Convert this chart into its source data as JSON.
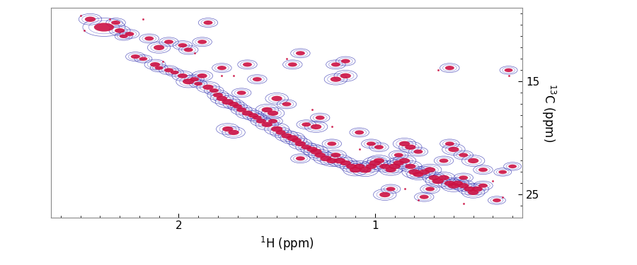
{
  "xlabel": "$^{1}$H (ppm)",
  "ylabel": "$^{13}$C (ppm)",
  "xlim": [
    2.65,
    0.25
  ],
  "ylim": [
    27.0,
    8.5
  ],
  "xticks": [
    2.0,
    1.0
  ],
  "yticks": [
    15,
    25
  ],
  "bg_color": "#ffffff",
  "peaks": [
    [
      2.38,
      10.2,
      0.12,
      0.9,
      1.5
    ],
    [
      2.3,
      10.5,
      0.06,
      0.5,
      0.8
    ],
    [
      2.28,
      11.0,
      0.05,
      0.4,
      0.7
    ],
    [
      2.22,
      12.8,
      0.055,
      0.45,
      0.7
    ],
    [
      2.18,
      13.0,
      0.05,
      0.4,
      0.6
    ],
    [
      2.12,
      13.5,
      0.06,
      0.5,
      0.8
    ],
    [
      2.1,
      13.8,
      0.05,
      0.4,
      0.6
    ],
    [
      2.05,
      14.0,
      0.055,
      0.45,
      0.7
    ],
    [
      2.02,
      14.2,
      0.05,
      0.4,
      0.6
    ],
    [
      1.98,
      14.5,
      0.06,
      0.5,
      0.8
    ],
    [
      1.95,
      15.0,
      0.07,
      0.6,
      0.9
    ],
    [
      1.92,
      14.8,
      0.055,
      0.45,
      0.7
    ],
    [
      1.9,
      15.2,
      0.05,
      0.4,
      0.6
    ],
    [
      1.88,
      14.5,
      0.06,
      0.5,
      0.8
    ],
    [
      1.85,
      15.5,
      0.065,
      0.55,
      0.85
    ],
    [
      1.82,
      15.8,
      0.055,
      0.45,
      0.7
    ],
    [
      1.8,
      16.2,
      0.06,
      0.5,
      0.8
    ],
    [
      1.78,
      16.5,
      0.065,
      0.55,
      0.85
    ],
    [
      1.75,
      16.8,
      0.07,
      0.6,
      0.9
    ],
    [
      1.72,
      17.0,
      0.06,
      0.5,
      0.8
    ],
    [
      1.7,
      17.2,
      0.055,
      0.45,
      0.7
    ],
    [
      1.68,
      17.5,
      0.06,
      0.5,
      0.8
    ],
    [
      1.65,
      17.8,
      0.065,
      0.55,
      0.85
    ],
    [
      1.62,
      18.0,
      0.06,
      0.5,
      0.8
    ],
    [
      1.6,
      18.2,
      0.055,
      0.45,
      0.7
    ],
    [
      1.58,
      18.5,
      0.06,
      0.5,
      0.8
    ],
    [
      1.55,
      18.8,
      0.065,
      0.55,
      0.85
    ],
    [
      1.52,
      18.5,
      0.055,
      0.45,
      0.7
    ],
    [
      1.5,
      19.2,
      0.07,
      0.6,
      0.9
    ],
    [
      1.48,
      19.5,
      0.06,
      0.5,
      0.8
    ],
    [
      1.45,
      19.8,
      0.065,
      0.55,
      0.85
    ],
    [
      1.42,
      20.0,
      0.07,
      0.6,
      0.9
    ],
    [
      1.4,
      20.2,
      0.06,
      0.5,
      0.8
    ],
    [
      1.38,
      20.5,
      0.065,
      0.55,
      0.85
    ],
    [
      1.35,
      20.8,
      0.06,
      0.5,
      0.8
    ],
    [
      1.32,
      21.0,
      0.065,
      0.55,
      0.85
    ],
    [
      1.3,
      21.2,
      0.07,
      0.6,
      0.9
    ],
    [
      1.28,
      21.5,
      0.065,
      0.55,
      0.85
    ],
    [
      1.25,
      21.8,
      0.07,
      0.6,
      0.9
    ],
    [
      1.22,
      22.0,
      0.065,
      0.55,
      0.85
    ],
    [
      1.2,
      21.5,
      0.06,
      0.5,
      0.8
    ],
    [
      1.18,
      22.0,
      0.07,
      0.6,
      0.9
    ],
    [
      1.15,
      22.2,
      0.065,
      0.55,
      0.85
    ],
    [
      1.12,
      22.5,
      0.065,
      0.55,
      0.85
    ],
    [
      1.1,
      22.8,
      0.07,
      0.6,
      0.9
    ],
    [
      1.08,
      22.5,
      0.065,
      0.55,
      0.85
    ],
    [
      1.05,
      22.8,
      0.075,
      0.65,
      0.95
    ],
    [
      1.02,
      22.5,
      0.065,
      0.55,
      0.85
    ],
    [
      1.0,
      22.2,
      0.07,
      0.6,
      0.9
    ],
    [
      0.98,
      22.0,
      0.065,
      0.55,
      0.85
    ],
    [
      0.95,
      22.5,
      0.065,
      0.55,
      0.85
    ],
    [
      0.92,
      22.8,
      0.065,
      0.55,
      0.85
    ],
    [
      0.9,
      22.5,
      0.07,
      0.6,
      0.9
    ],
    [
      0.88,
      22.2,
      0.065,
      0.55,
      0.85
    ],
    [
      0.85,
      22.0,
      0.065,
      0.55,
      0.85
    ],
    [
      0.82,
      22.5,
      0.065,
      0.55,
      0.85
    ],
    [
      0.8,
      23.0,
      0.07,
      0.6,
      0.9
    ],
    [
      0.78,
      23.2,
      0.065,
      0.55,
      0.85
    ],
    [
      0.75,
      23.0,
      0.065,
      0.55,
      0.85
    ],
    [
      0.72,
      22.8,
      0.065,
      0.55,
      0.85
    ],
    [
      0.7,
      23.5,
      0.065,
      0.55,
      0.85
    ],
    [
      0.68,
      23.8,
      0.07,
      0.6,
      0.9
    ],
    [
      0.65,
      23.5,
      0.065,
      0.55,
      0.85
    ],
    [
      0.62,
      24.0,
      0.065,
      0.55,
      0.85
    ],
    [
      0.6,
      24.2,
      0.07,
      0.6,
      0.9
    ],
    [
      0.58,
      24.0,
      0.065,
      0.55,
      0.85
    ],
    [
      0.55,
      24.2,
      0.065,
      0.55,
      0.85
    ],
    [
      0.52,
      24.5,
      0.065,
      0.55,
      0.85
    ],
    [
      0.5,
      24.8,
      0.065,
      0.55,
      0.85
    ],
    [
      0.48,
      24.5,
      0.065,
      0.55,
      0.85
    ],
    [
      1.75,
      19.2,
      0.065,
      0.55,
      0.85
    ],
    [
      1.72,
      19.5,
      0.065,
      0.55,
      0.85
    ],
    [
      1.3,
      19.0,
      0.065,
      0.55,
      0.85
    ],
    [
      0.85,
      20.5,
      0.065,
      0.55,
      0.85
    ],
    [
      0.82,
      20.8,
      0.065,
      0.55,
      0.85
    ],
    [
      1.55,
      17.5,
      0.065,
      0.55,
      0.85
    ],
    [
      1.52,
      17.8,
      0.065,
      0.55,
      0.85
    ],
    [
      0.6,
      21.0,
      0.065,
      0.55,
      0.85
    ],
    [
      0.5,
      22.0,
      0.065,
      0.55,
      0.85
    ],
    [
      0.95,
      25.0,
      0.065,
      0.55,
      0.85
    ],
    [
      2.1,
      12.0,
      0.065,
      0.55,
      0.85
    ],
    [
      1.38,
      12.5,
      0.055,
      0.45,
      0.7
    ],
    [
      1.15,
      13.2,
      0.055,
      0.45,
      0.7
    ],
    [
      1.2,
      13.5,
      0.055,
      0.45,
      0.7
    ],
    [
      0.62,
      13.8,
      0.055,
      0.45,
      0.7
    ],
    [
      1.85,
      9.8,
      0.055,
      0.45,
      0.7
    ],
    [
      1.2,
      14.8,
      0.065,
      0.55,
      0.85
    ],
    [
      1.15,
      14.5,
      0.065,
      0.55,
      0.85
    ],
    [
      1.5,
      16.5,
      0.065,
      0.55,
      0.85
    ],
    [
      0.55,
      21.5,
      0.055,
      0.45,
      0.7
    ],
    [
      0.75,
      25.2,
      0.055,
      0.45,
      0.7
    ],
    [
      0.45,
      24.2,
      0.055,
      0.45,
      0.7
    ],
    [
      2.45,
      9.5,
      0.065,
      0.55,
      0.85
    ],
    [
      2.32,
      9.8,
      0.055,
      0.45,
      0.7
    ],
    [
      2.05,
      11.5,
      0.055,
      0.45,
      0.7
    ],
    [
      1.95,
      12.2,
      0.055,
      0.45,
      0.7
    ],
    [
      1.78,
      13.8,
      0.055,
      0.45,
      0.7
    ],
    [
      1.42,
      13.5,
      0.055,
      0.45,
      0.7
    ],
    [
      1.38,
      21.8,
      0.055,
      0.45,
      0.7
    ],
    [
      0.88,
      21.5,
      0.055,
      0.45,
      0.7
    ],
    [
      0.72,
      24.5,
      0.055,
      0.45,
      0.7
    ],
    [
      0.45,
      22.8,
      0.055,
      0.45,
      0.7
    ],
    [
      1.02,
      20.5,
      0.055,
      0.45,
      0.7
    ],
    [
      0.98,
      20.8,
      0.055,
      0.45,
      0.7
    ],
    [
      1.35,
      18.8,
      0.055,
      0.45,
      0.7
    ],
    [
      1.28,
      18.2,
      0.055,
      0.45,
      0.7
    ],
    [
      1.88,
      11.5,
      0.055,
      0.45,
      0.7
    ],
    [
      1.98,
      11.8,
      0.055,
      0.45,
      0.7
    ],
    [
      0.62,
      20.5,
      0.055,
      0.45,
      0.7
    ],
    [
      0.38,
      25.5,
      0.05,
      0.4,
      0.6
    ],
    [
      0.35,
      23.0,
      0.05,
      0.4,
      0.6
    ],
    [
      0.78,
      21.2,
      0.055,
      0.45,
      0.7
    ],
    [
      1.08,
      19.5,
      0.055,
      0.45,
      0.7
    ],
    [
      1.6,
      14.8,
      0.055,
      0.45,
      0.7
    ],
    [
      1.65,
      13.5,
      0.055,
      0.45,
      0.7
    ],
    [
      2.25,
      10.8,
      0.055,
      0.45,
      0.7
    ],
    [
      2.15,
      11.2,
      0.055,
      0.45,
      0.7
    ],
    [
      0.92,
      24.5,
      0.055,
      0.45,
      0.7
    ],
    [
      1.22,
      20.5,
      0.055,
      0.45,
      0.7
    ],
    [
      1.45,
      17.0,
      0.055,
      0.45,
      0.7
    ],
    [
      1.68,
      16.0,
      0.055,
      0.45,
      0.7
    ],
    [
      0.55,
      23.5,
      0.055,
      0.45,
      0.7
    ],
    [
      0.65,
      22.0,
      0.055,
      0.45,
      0.7
    ],
    [
      0.32,
      14.0,
      0.05,
      0.4,
      0.6
    ],
    [
      0.3,
      22.5,
      0.05,
      0.4,
      0.6
    ]
  ],
  "tiny_dots": [
    [
      2.5,
      9.2
    ],
    [
      2.48,
      10.5
    ],
    [
      2.35,
      9.5
    ],
    [
      1.92,
      12.5
    ],
    [
      1.78,
      14.5
    ],
    [
      1.32,
      17.5
    ],
    [
      1.22,
      19.0
    ],
    [
      0.78,
      25.5
    ],
    [
      0.55,
      25.8
    ],
    [
      0.35,
      25.2
    ],
    [
      0.32,
      14.5
    ],
    [
      0.68,
      14.0
    ],
    [
      1.45,
      13.0
    ],
    [
      2.08,
      13.2
    ],
    [
      1.72,
      14.5
    ],
    [
      1.08,
      21.0
    ],
    [
      0.85,
      24.5
    ],
    [
      0.4,
      23.8
    ],
    [
      2.18,
      9.5
    ]
  ]
}
